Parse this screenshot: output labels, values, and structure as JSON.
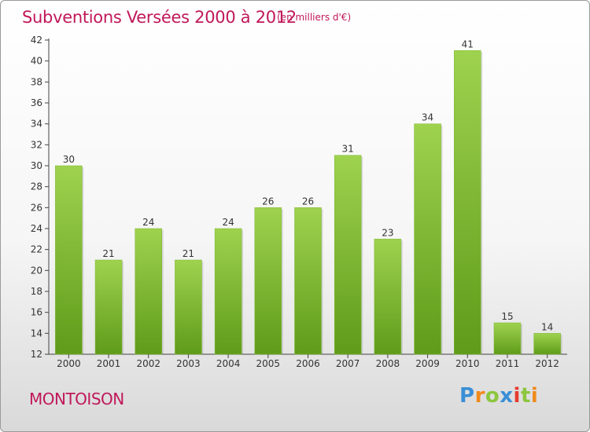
{
  "chart_data": {
    "type": "bar",
    "title": "Subventions Versées 2000 à 2012",
    "subtitle": "(en milliers d'€)",
    "categories": [
      "2000",
      "2001",
      "2002",
      "2003",
      "2004",
      "2005",
      "2006",
      "2007",
      "2008",
      "2009",
      "2010",
      "2011",
      "2012"
    ],
    "values": [
      30,
      21,
      24,
      21,
      24,
      26,
      26,
      31,
      23,
      34,
      41,
      15,
      14
    ],
    "ylim": [
      12,
      42
    ],
    "yticks": [
      12,
      14,
      16,
      18,
      20,
      22,
      24,
      26,
      28,
      30,
      32,
      34,
      36,
      38,
      40,
      42
    ],
    "grid": false,
    "bar_color_top": "#9ed24f",
    "bar_color_bottom": "#5f9c19"
  },
  "footer": {
    "place_name": "MONTOISON",
    "logo_letters": [
      {
        "ch": "P",
        "color": "#3a8fd6"
      },
      {
        "ch": "r",
        "color": "#f08a1c"
      },
      {
        "ch": "o",
        "color": "#8cc63e"
      },
      {
        "ch": "x",
        "color": "#3a8fd6"
      },
      {
        "ch": "i",
        "color": "#e53c2e"
      },
      {
        "ch": "t",
        "color": "#8cc63e"
      },
      {
        "ch": "i",
        "color": "#f08a1c"
      }
    ]
  },
  "colors": {
    "title": "#c0185a",
    "axis": "#444444"
  }
}
